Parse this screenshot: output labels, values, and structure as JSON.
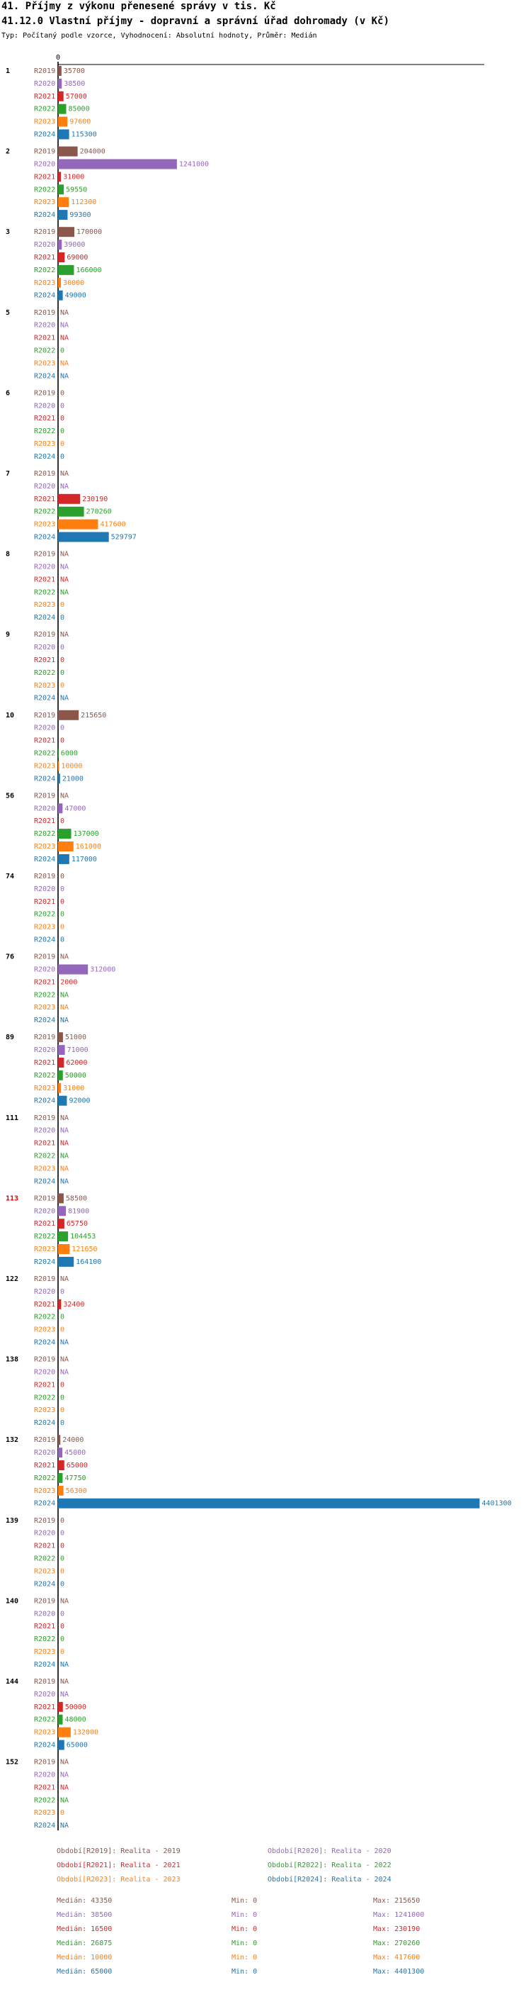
{
  "chart_data": {
    "type": "hbar-grouped",
    "title": "41. Příjmy z výkonu přenesené správy v tis. Kč",
    "subtitle": "41.12.0 Vlastní příjmy - dopravní a správní úřad dohromady (v Kč)",
    "description": "Typ: Počítaný podle vzorce, Vyhodnocení: Absolutní hodnoty, Průměr: Medián",
    "categories": [
      "1",
      "2",
      "3",
      "5",
      "6",
      "7",
      "8",
      "9",
      "10",
      "56",
      "74",
      "76",
      "89",
      "111",
      "113",
      "122",
      "138",
      "132",
      "139",
      "140",
      "144",
      "152"
    ],
    "category_colors": [
      "#000",
      "#000",
      "#000",
      "#000",
      "#000",
      "#000",
      "#000",
      "#000",
      "#000",
      "#000",
      "#000",
      "#000",
      "#000",
      "#000",
      "#e00000",
      "#000",
      "#000",
      "#000",
      "#000",
      "#000",
      "#000",
      "#000"
    ],
    "xlim": [
      0,
      4450000
    ],
    "xticks": [
      0
    ],
    "stat_labels": [
      "Medián:",
      "Min:",
      "Max:"
    ],
    "series": [
      {
        "name": "R2019",
        "legend": "Období[R2019]: Realita - 2019",
        "color": "#8c564b",
        "values": [
          35700,
          204000,
          170000,
          null,
          0,
          null,
          null,
          null,
          215650,
          null,
          0,
          null,
          51000,
          null,
          58500,
          null,
          null,
          24000,
          0,
          null,
          null,
          null
        ],
        "value_labels": [
          "35700",
          "204000",
          "170000",
          "NA",
          "0",
          "NA",
          "NA",
          "NA",
          "215650",
          "NA",
          "0",
          "NA",
          "51000",
          "NA",
          "58500",
          "NA",
          "NA",
          "24000",
          "0",
          "NA",
          "NA",
          "NA"
        ],
        "median": 43350,
        "min": 0,
        "max": 215650
      },
      {
        "name": "R2020",
        "legend": "Období[R2020]: Realita - 2020",
        "color": "#9467bd",
        "values": [
          38500,
          1241000,
          39000,
          null,
          0,
          null,
          null,
          0,
          0,
          47000,
          0,
          312000,
          71000,
          null,
          81900,
          0,
          null,
          45000,
          0,
          0,
          null,
          null
        ],
        "value_labels": [
          "38500",
          "1241000",
          "39000",
          "NA",
          "0",
          "NA",
          "NA",
          "0",
          "0",
          "47000",
          "0",
          "312000",
          "71000",
          "NA",
          "81900",
          "0",
          "NA",
          "45000",
          "0",
          "0",
          "NA",
          "NA"
        ],
        "median": 38500,
        "min": 0,
        "max": 1241000
      },
      {
        "name": "R2021",
        "legend": "Období[R2021]: Realita - 2021",
        "color": "#d62728",
        "values": [
          57000,
          31000,
          69000,
          null,
          0,
          230190,
          null,
          0,
          0,
          0,
          0,
          2000,
          62000,
          null,
          65750,
          32400,
          0,
          65000,
          0,
          0,
          50000,
          null
        ],
        "value_labels": [
          "57000",
          "31000",
          "69000",
          "NA",
          "0",
          "230190",
          "NA",
          "0",
          "0",
          "0",
          "0",
          "2000",
          "62000",
          "NA",
          "65750",
          "32400",
          "0",
          "65000",
          "0",
          "0",
          "50000",
          "NA"
        ],
        "median": 16500,
        "min": 0,
        "max": 230190
      },
      {
        "name": "R2022",
        "legend": "Období[R2022]: Realita - 2022",
        "color": "#2ca02c",
        "values": [
          85000,
          59550,
          166000,
          0,
          0,
          270260,
          null,
          0,
          6000,
          137000,
          0,
          null,
          50000,
          null,
          104453,
          0,
          0,
          47750,
          0,
          0,
          48000,
          null
        ],
        "value_labels": [
          "85000",
          "59550",
          "166000",
          "0",
          "0",
          "270260",
          "NA",
          "0",
          "6000",
          "137000",
          "0",
          "NA",
          "50000",
          "NA",
          "104453",
          "0",
          "0",
          "47750",
          "0",
          "0",
          "48000",
          "NA"
        ],
        "median": 26875,
        "min": 0,
        "max": 270260
      },
      {
        "name": "R2023",
        "legend": "Období[R2023]: Realita - 2023",
        "color": "#ff7f0e",
        "values": [
          97600,
          112300,
          30000,
          null,
          0,
          417600,
          0,
          0,
          10000,
          161000,
          0,
          null,
          31000,
          null,
          121650,
          0,
          0,
          56300,
          0,
          0,
          132000,
          0
        ],
        "value_labels": [
          "97600",
          "112300",
          "30000",
          "NA",
          "0",
          "417600",
          "0",
          "0",
          "10000",
          "161000",
          "0",
          "NA",
          "31000",
          "NA",
          "121650",
          "0",
          "0",
          "56300",
          "0",
          "0",
          "132000",
          "0"
        ],
        "median": 10000,
        "min": 0,
        "max": 417600
      },
      {
        "name": "R2024",
        "legend": "Období[R2024]: Realita - 2024",
        "color": "#1f77b4",
        "values": [
          115300,
          99300,
          49000,
          null,
          0,
          529797,
          0,
          null,
          21000,
          117000,
          0,
          null,
          92000,
          null,
          164100,
          null,
          0,
          4401300,
          0,
          null,
          65000,
          null
        ],
        "value_labels": [
          "115300",
          "99300",
          "49000",
          "NA",
          "0",
          "529797",
          "0",
          "NA",
          "21000",
          "117000",
          "0",
          "NA",
          "92000",
          "NA",
          "164100",
          "NA",
          "0",
          "4401300",
          "0",
          "NA",
          "65000",
          "NA"
        ],
        "median": 65000,
        "min": 0,
        "max": 4401300
      }
    ]
  }
}
